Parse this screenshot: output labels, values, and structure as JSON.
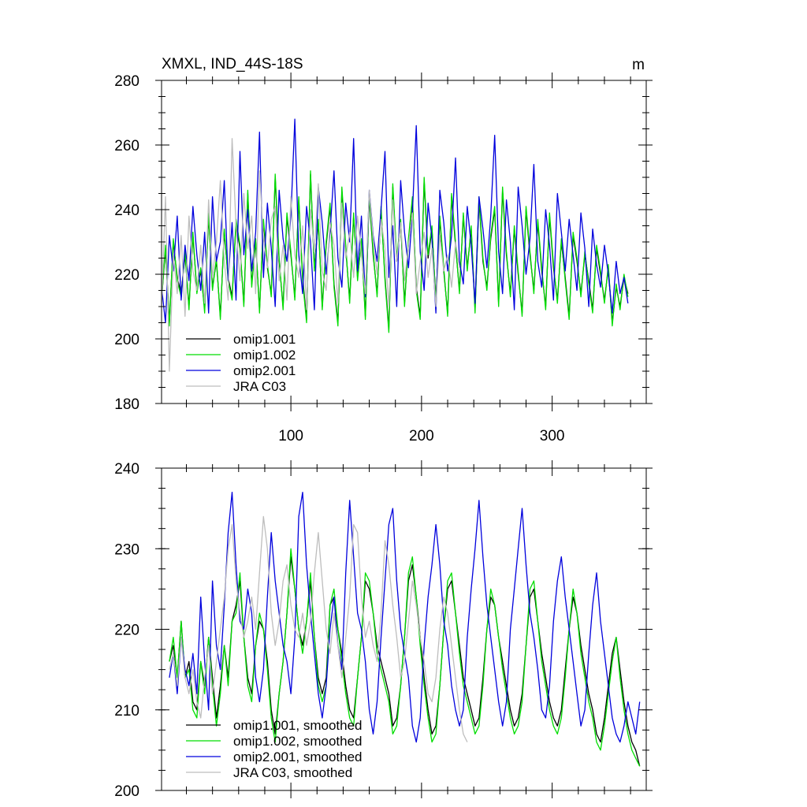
{
  "chart_data": [
    {
      "type": "line",
      "title": "XMXL, IND_44S-18S",
      "units": "m",
      "xlabel": "",
      "ylabel": "",
      "xlim": [
        1,
        372
      ],
      "ylim": [
        180,
        280
      ],
      "xticks": [
        100,
        200,
        300
      ],
      "xtick_labels": [
        "100",
        "200",
        "300"
      ],
      "yticks": [
        180,
        200,
        220,
        240,
        260,
        280
      ],
      "ytick_labels": [
        "180",
        "200",
        "220",
        "240",
        "260",
        "280"
      ],
      "legend_position": "bottom-left",
      "series": [
        {
          "name": "omip1.001",
          "color": "#000000",
          "x_start": 1,
          "x_step": 3,
          "values": [
            212,
            228,
            205,
            230,
            219,
            214,
            226,
            210,
            232,
            215,
            221,
            209,
            238,
            216,
            224,
            207,
            233,
            219,
            213,
            236,
            228,
            211,
            245,
            217,
            230,
            209,
            236,
            222,
            214,
            250,
            224,
            210,
            238,
            226,
            213,
            243,
            219,
            206,
            251,
            222,
            236,
            210,
            229,
            241,
            217,
            205,
            246,
            228,
            212,
            238,
            219,
            230,
            207,
            244,
            226,
            214,
            240,
            219,
            203,
            247,
            224,
            236,
            211,
            230,
            243,
            216,
            207,
            249,
            225,
            234,
            212,
            237,
            221,
            208,
            244,
            229,
            215,
            238,
            222,
            234,
            209,
            243,
            224,
            216,
            231,
            240,
            211,
            246,
            226,
            214,
            234,
            220,
            208,
            240,
            226,
            215,
            236,
            221,
            210,
            238,
            222,
            212,
            230,
            219,
            207,
            232,
            224,
            214,
            226,
            218,
            209,
            228,
            220,
            212,
            222,
            205,
            216,
            210,
            219,
            214
          ]
        },
        {
          "name": "omip1.002",
          "color": "#00dd00",
          "x_start": 1,
          "x_step": 3,
          "values": [
            212,
            229,
            204,
            231,
            218,
            213,
            227,
            209,
            233,
            214,
            222,
            208,
            239,
            215,
            225,
            206,
            234,
            218,
            212,
            237,
            229,
            210,
            246,
            216,
            231,
            208,
            237,
            223,
            213,
            251,
            225,
            209,
            239,
            227,
            212,
            244,
            218,
            205,
            252,
            221,
            237,
            209,
            230,
            242,
            216,
            204,
            247,
            229,
            211,
            239,
            218,
            231,
            206,
            245,
            227,
            213,
            241,
            218,
            202,
            248,
            225,
            237,
            210,
            231,
            244,
            215,
            206,
            250,
            226,
            235,
            211,
            238,
            222,
            207,
            245,
            230,
            214,
            239,
            221,
            235,
            208,
            244,
            225,
            215,
            232,
            241,
            210,
            247,
            227,
            213,
            235,
            221,
            207,
            241,
            227,
            214,
            237,
            222,
            209,
            239,
            223,
            211,
            231,
            218,
            206,
            233,
            225,
            213,
            227,
            217,
            208,
            229,
            221,
            211,
            223,
            204,
            217,
            209,
            220,
            213
          ]
        },
        {
          "name": "omip2.001",
          "color": "#0000dd",
          "x_start": 1,
          "x_step": 3,
          "values": [
            216,
            205,
            232,
            221,
            238,
            212,
            229,
            218,
            241,
            226,
            215,
            233,
            208,
            244,
            224,
            230,
            249,
            218,
            236,
            212,
            258,
            226,
            240,
            221,
            233,
            264,
            219,
            242,
            228,
            210,
            246,
            231,
            224,
            238,
            268,
            226,
            214,
            241,
            230,
            209,
            247,
            236,
            220,
            233,
            252,
            225,
            216,
            242,
            230,
            262,
            221,
            238,
            213,
            246,
            232,
            224,
            240,
            258,
            219,
            235,
            210,
            249,
            233,
            222,
            239,
            266,
            227,
            215,
            242,
            231,
            208,
            246,
            236,
            221,
            232,
            256,
            224,
            217,
            241,
            229,
            211,
            244,
            234,
            222,
            238,
            263,
            227,
            214,
            243,
            230,
            209,
            247,
            235,
            220,
            231,
            254,
            224,
            216,
            240,
            229,
            212,
            245,
            233,
            221,
            237,
            226,
            215,
            239,
            228,
            210,
            234,
            223,
            216,
            229,
            220,
            208,
            224,
            214,
            219,
            211
          ]
        },
        {
          "name": "JRA C03",
          "color": "#bdbdbd",
          "x_start": 1,
          "x_step": 3,
          "values": [
            210,
            244,
            190,
            226,
            214,
            232,
            207,
            238,
            221,
            215,
            229,
            211,
            243,
            219,
            230,
            249,
            224,
            212,
            262,
            235,
            218,
            245,
            228,
            238,
            214,
            252,
            231,
            222,
            237,
            241,
            218,
            229,
            212,
            244,
            226,
            219,
            235,
            209,
            240,
            227,
            248,
            221,
            215,
            236,
            229,
            211,
            242,
            225,
            233,
            219,
            238,
            226,
            214,
            246,
            231,
            220,
            237,
            228,
            210,
            243,
            224,
            236,
            218,
            229,
            239,
            214,
            224,
            233,
            219,
            228,
            210,
            232,
            221,
            226,
            216,
            230,
            222
          ]
        }
      ]
    },
    {
      "type": "line",
      "title": "",
      "xlabel": "",
      "ylabel": "",
      "xlim": [
        1,
        372
      ],
      "ylim": [
        200,
        240
      ],
      "xticks": [
        100,
        200,
        300
      ],
      "xtick_labels": [
        "",
        "",
        ""
      ],
      "yticks": [
        200,
        210,
        220,
        230,
        240
      ],
      "ytick_labels": [
        "200",
        "210",
        "220",
        "230",
        "240"
      ],
      "legend_position": "bottom-left",
      "series": [
        {
          "name": "omip1.001, smoothed",
          "color": "#000000",
          "x_start": 7,
          "x_step": 3,
          "values": [
            216,
            218,
            214,
            221,
            214,
            216,
            211,
            210,
            216,
            213,
            219,
            214,
            209,
            213,
            218,
            214,
            221,
            223,
            226,
            219,
            214,
            212,
            218,
            221,
            220,
            216,
            210,
            207,
            212,
            216,
            222,
            229,
            225,
            220,
            218,
            221,
            226,
            219,
            214,
            212,
            214,
            223,
            224,
            220,
            217,
            213,
            210,
            209,
            214,
            219,
            226,
            225,
            222,
            218,
            216,
            214,
            212,
            208,
            209,
            213,
            219,
            226,
            228,
            224,
            219,
            214,
            210,
            207,
            208,
            213,
            220,
            225,
            226,
            222,
            218,
            214,
            212,
            210,
            208,
            209,
            214,
            220,
            224,
            223,
            219,
            216,
            213,
            210,
            208,
            209,
            212,
            218,
            224,
            225,
            221,
            217,
            214,
            211,
            209,
            208,
            210,
            215,
            220,
            224,
            222,
            218,
            215,
            212,
            210,
            207,
            206,
            209,
            213,
            217,
            219,
            215,
            211,
            208,
            206,
            205,
            203
          ]
        },
        {
          "name": "omip1.002, smoothed",
          "color": "#00dd00",
          "x_start": 7,
          "x_step": 3,
          "values": [
            216,
            219,
            214,
            221,
            214,
            215,
            210,
            209,
            216,
            212,
            219,
            213,
            208,
            212,
            218,
            213,
            221,
            222,
            227,
            219,
            213,
            211,
            218,
            222,
            220,
            215,
            209,
            206,
            212,
            216,
            222,
            230,
            225,
            220,
            217,
            221,
            227,
            219,
            213,
            211,
            213,
            223,
            225,
            220,
            216,
            212,
            209,
            208,
            214,
            219,
            227,
            226,
            222,
            217,
            215,
            213,
            211,
            207,
            208,
            213,
            219,
            227,
            229,
            224,
            218,
            213,
            209,
            206,
            207,
            213,
            220,
            226,
            227,
            222,
            217,
            213,
            211,
            209,
            207,
            208,
            213,
            220,
            225,
            223,
            219,
            215,
            212,
            209,
            207,
            208,
            211,
            218,
            225,
            226,
            221,
            216,
            213,
            210,
            208,
            207,
            209,
            214,
            220,
            225,
            222,
            217,
            214,
            211,
            209,
            206,
            205,
            208,
            212,
            216,
            219,
            214,
            210,
            207,
            205,
            204,
            203
          ]
        },
        {
          "name": "omip2.001, smoothed",
          "color": "#0000dd",
          "x_start": 7,
          "x_step": 3,
          "values": [
            214,
            217,
            212,
            219,
            215,
            213,
            217,
            212,
            224,
            216,
            210,
            226,
            218,
            215,
            223,
            232,
            237,
            228,
            221,
            220,
            225,
            222,
            214,
            211,
            215,
            224,
            232,
            226,
            222,
            218,
            216,
            212,
            219,
            234,
            237,
            228,
            222,
            217,
            212,
            209,
            213,
            220,
            224,
            218,
            215,
            227,
            236,
            229,
            222,
            220,
            216,
            210,
            207,
            211,
            219,
            226,
            233,
            235,
            226,
            220,
            217,
            214,
            208,
            206,
            209,
            218,
            224,
            228,
            233,
            228,
            221,
            218,
            213,
            210,
            208,
            210,
            219,
            225,
            230,
            236,
            229,
            223,
            219,
            215,
            211,
            208,
            211,
            220,
            225,
            230,
            235,
            228,
            222,
            219,
            215,
            210,
            209,
            213,
            221,
            226,
            229,
            224,
            220,
            216,
            212,
            208,
            210,
            217,
            223,
            227,
            221,
            217,
            213,
            209,
            207,
            206,
            208,
            211,
            209,
            207,
            211
          ]
        },
        {
          "name": "JRA C03, smoothed",
          "color": "#bdbdbd",
          "x_start": 7,
          "x_step": 3,
          "values": [
            215,
            217,
            213,
            219,
            214,
            212,
            215,
            211,
            209,
            214,
            218,
            212,
            216,
            220,
            224,
            230,
            233,
            226,
            222,
            219,
            221,
            224,
            220,
            227,
            234,
            230,
            222,
            218,
            221,
            226,
            228,
            223,
            220,
            219,
            222,
            218,
            221,
            227,
            232,
            226,
            220,
            217,
            222,
            218,
            214,
            219,
            224,
            233,
            232,
            224,
            219,
            221,
            218,
            216,
            222,
            231,
            228,
            223,
            219,
            214,
            216,
            221,
            226,
            223,
            219,
            216,
            212,
            211,
            214,
            220,
            224,
            222,
            218,
            214,
            210,
            207,
            206
          ]
        }
      ]
    }
  ]
}
